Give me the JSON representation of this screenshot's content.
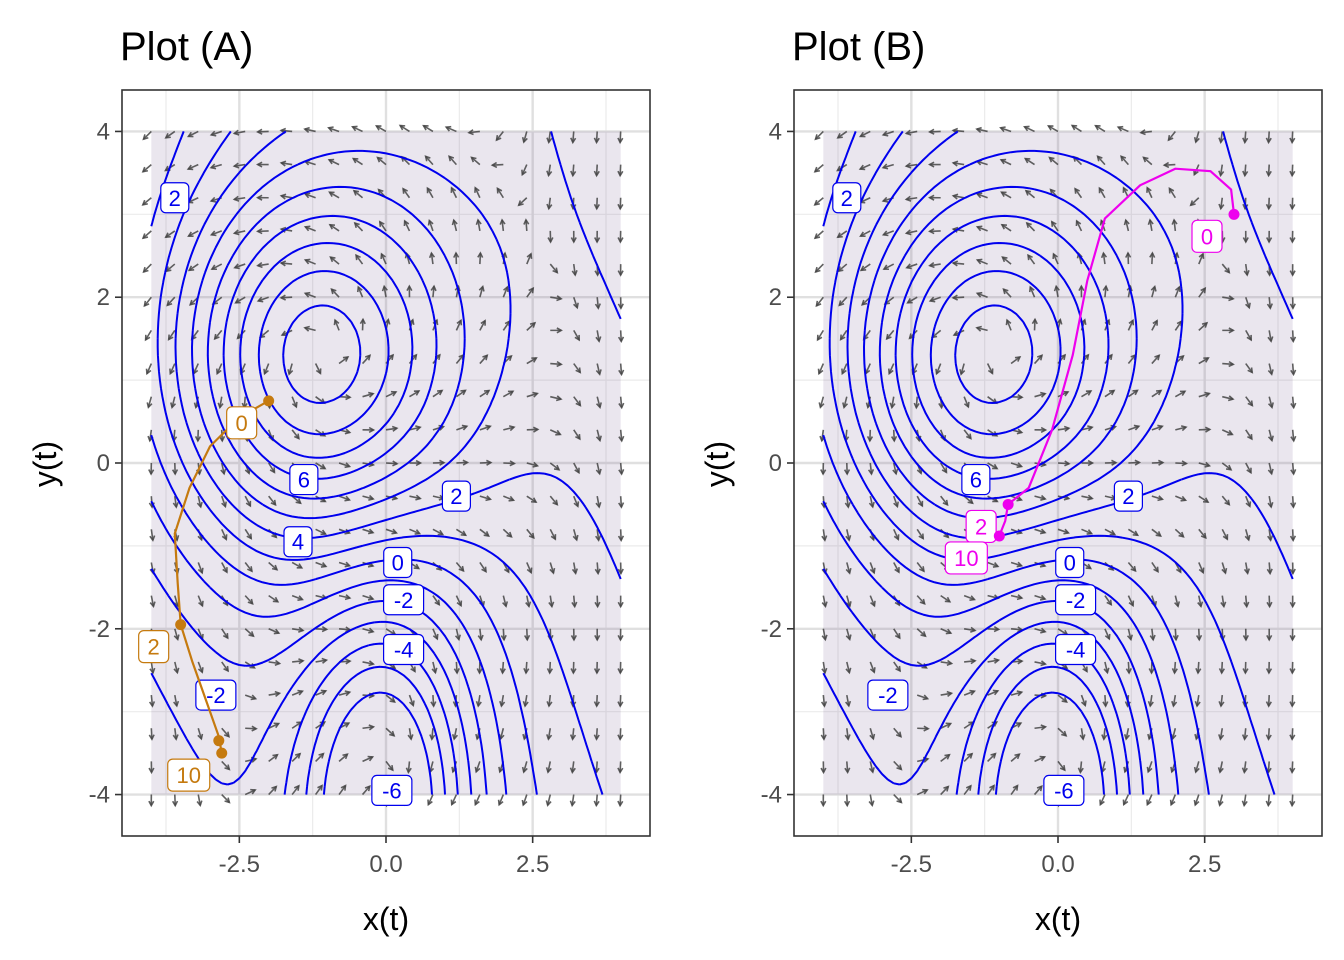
{
  "chart_data": [
    {
      "type": "contour",
      "title": "Plot (A)",
      "xlabel": "x(t)",
      "ylabel": "y(t)",
      "xlim": [
        -4.5,
        4.5
      ],
      "ylim": [
        -4.5,
        4.5
      ],
      "x_ticks": [
        {
          "v": -2.5,
          "label": "-2.5"
        },
        {
          "v": 0,
          "label": "0.0"
        },
        {
          "v": 2.5,
          "label": "2.5"
        }
      ],
      "y_ticks": [
        {
          "v": 4,
          "label": "4"
        },
        {
          "v": 2,
          "label": "2"
        },
        {
          "v": 0,
          "label": "0"
        },
        {
          "v": -2,
          "label": "-2"
        },
        {
          "v": -4,
          "label": "-4"
        }
      ],
      "grid": true,
      "vector_field_range": {
        "x": [
          -4,
          4
        ],
        "y": [
          -4,
          4
        ]
      },
      "contour_color": "#0000ee",
      "contour_labels": [
        {
          "x": -3.6,
          "y": 3.2,
          "label": "2"
        },
        {
          "x": -1.4,
          "y": -0.2,
          "label": "6"
        },
        {
          "x": -1.5,
          "y": -0.95,
          "label": "4"
        },
        {
          "x": 1.2,
          "y": -0.4,
          "label": "2"
        },
        {
          "x": 0.2,
          "y": -1.2,
          "label": "0"
        },
        {
          "x": 0.3,
          "y": -1.65,
          "label": "-2"
        },
        {
          "x": 0.3,
          "y": -2.25,
          "label": "-4"
        },
        {
          "x": -2.9,
          "y": -2.8,
          "label": "-2"
        },
        {
          "x": 0.1,
          "y": -3.95,
          "label": "-6"
        }
      ],
      "trajectory": {
        "color": "#c57a0f",
        "points": [
          [
            -2.0,
            0.75
          ],
          [
            -2.5,
            0.55
          ],
          [
            -3.0,
            0.2
          ],
          [
            -3.35,
            -0.3
          ],
          [
            -3.6,
            -0.85
          ],
          [
            -3.55,
            -1.45
          ],
          [
            -3.5,
            -1.95
          ],
          [
            -3.3,
            -2.4
          ],
          [
            -3.05,
            -2.9
          ],
          [
            -2.85,
            -3.3
          ],
          [
            -2.8,
            -3.5
          ]
        ],
        "markers": [
          {
            "x": -2.0,
            "y": 0.75,
            "label": "0"
          },
          {
            "x": -3.5,
            "y": -1.95,
            "label": "2"
          },
          {
            "x": -2.85,
            "y": -3.35,
            "label": ""
          },
          {
            "x": -2.8,
            "y": -3.5,
            "label": "10"
          }
        ]
      }
    },
    {
      "type": "contour",
      "title": "Plot (B)",
      "xlabel": "x(t)",
      "ylabel": "y(t)",
      "xlim": [
        -4.5,
        4.5
      ],
      "ylim": [
        -4.5,
        4.5
      ],
      "x_ticks": [
        {
          "v": -2.5,
          "label": "-2.5"
        },
        {
          "v": 0,
          "label": "0.0"
        },
        {
          "v": 2.5,
          "label": "2.5"
        }
      ],
      "y_ticks": [
        {
          "v": 4,
          "label": "4"
        },
        {
          "v": 2,
          "label": "2"
        },
        {
          "v": 0,
          "label": "0"
        },
        {
          "v": -2,
          "label": "-2"
        },
        {
          "v": -4,
          "label": "-4"
        }
      ],
      "grid": true,
      "vector_field_range": {
        "x": [
          -4,
          4
        ],
        "y": [
          -4,
          4
        ]
      },
      "contour_color": "#0000ee",
      "contour_labels": [
        {
          "x": -3.6,
          "y": 3.2,
          "label": "2"
        },
        {
          "x": -1.4,
          "y": -0.2,
          "label": "6"
        },
        {
          "x": 1.2,
          "y": -0.4,
          "label": "2"
        },
        {
          "x": 0.2,
          "y": -1.2,
          "label": "0"
        },
        {
          "x": 0.3,
          "y": -1.65,
          "label": "-2"
        },
        {
          "x": 0.3,
          "y": -2.25,
          "label": "-4"
        },
        {
          "x": -2.9,
          "y": -2.8,
          "label": "-2"
        },
        {
          "x": 0.1,
          "y": -3.95,
          "label": "-6"
        }
      ],
      "trajectory": {
        "color": "#ee00ee",
        "points": [
          [
            3.0,
            3.0
          ],
          [
            2.95,
            3.3
          ],
          [
            2.6,
            3.52
          ],
          [
            2.0,
            3.55
          ],
          [
            1.4,
            3.35
          ],
          [
            0.8,
            2.95
          ],
          [
            0.5,
            2.2
          ],
          [
            0.25,
            1.3
          ],
          [
            -0.1,
            0.4
          ],
          [
            -0.5,
            -0.3
          ],
          [
            -0.85,
            -0.5
          ],
          [
            -0.9,
            -0.7
          ],
          [
            -1.0,
            -0.88
          ]
        ],
        "markers": [
          {
            "x": 3.0,
            "y": 3.0,
            "label": "0"
          },
          {
            "x": -0.85,
            "y": -0.5,
            "label": "2"
          },
          {
            "x": -1.0,
            "y": -0.88,
            "label": "10"
          }
        ]
      }
    }
  ]
}
